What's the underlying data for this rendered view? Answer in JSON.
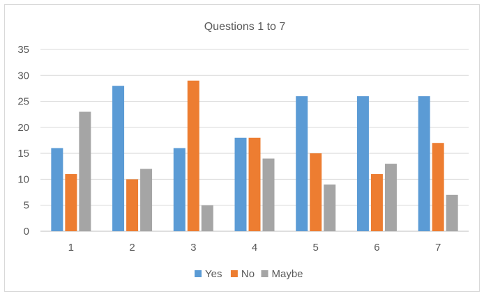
{
  "chart_data": {
    "type": "bar",
    "title": "Questions 1 to 7",
    "categories": [
      "1",
      "2",
      "3",
      "4",
      "5",
      "6",
      "7"
    ],
    "series": [
      {
        "name": "Yes",
        "color": "#5b9bd5",
        "values": [
          16,
          28,
          16,
          18,
          26,
          26,
          26
        ]
      },
      {
        "name": "No",
        "color": "#ed7d31",
        "values": [
          11,
          10,
          29,
          18,
          15,
          11,
          17
        ]
      },
      {
        "name": "Maybe",
        "color": "#a5a5a5",
        "values": [
          23,
          12,
          5,
          14,
          9,
          13,
          7
        ]
      }
    ],
    "ylim": [
      0,
      35
    ],
    "yticks": [
      0,
      5,
      10,
      15,
      20,
      25,
      30,
      35
    ],
    "grid": true,
    "legend_position": "bottom"
  }
}
